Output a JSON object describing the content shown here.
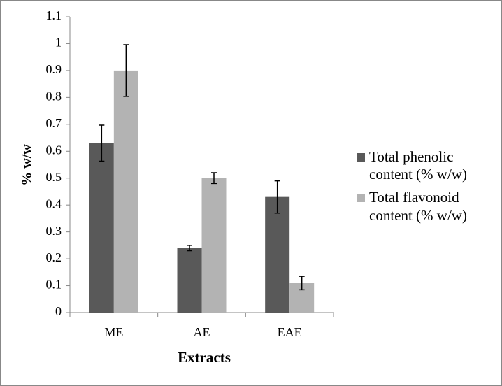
{
  "chart_data": {
    "type": "bar",
    "x_label": "Extracts",
    "y_label": "% w/w",
    "categories": [
      "ME",
      "AE",
      "EAE"
    ],
    "series": [
      {
        "name": "Total phenolic content (% w/w)",
        "color": "#595959",
        "values": [
          0.63,
          0.24,
          0.43
        ],
        "errors": [
          0.067,
          0.01,
          0.06
        ]
      },
      {
        "name": "Total flavonoid content (% w/w)",
        "color": "#b3b3b3",
        "values": [
          0.9,
          0.5,
          0.11
        ],
        "errors": [
          0.096,
          0.02,
          0.025
        ]
      }
    ],
    "ylim": [
      0,
      1.1
    ],
    "yticks": [
      0,
      0.1,
      0.2,
      0.3,
      0.4,
      0.5,
      0.6,
      0.7,
      0.8,
      0.9,
      1,
      1.1
    ],
    "legend": "right"
  }
}
